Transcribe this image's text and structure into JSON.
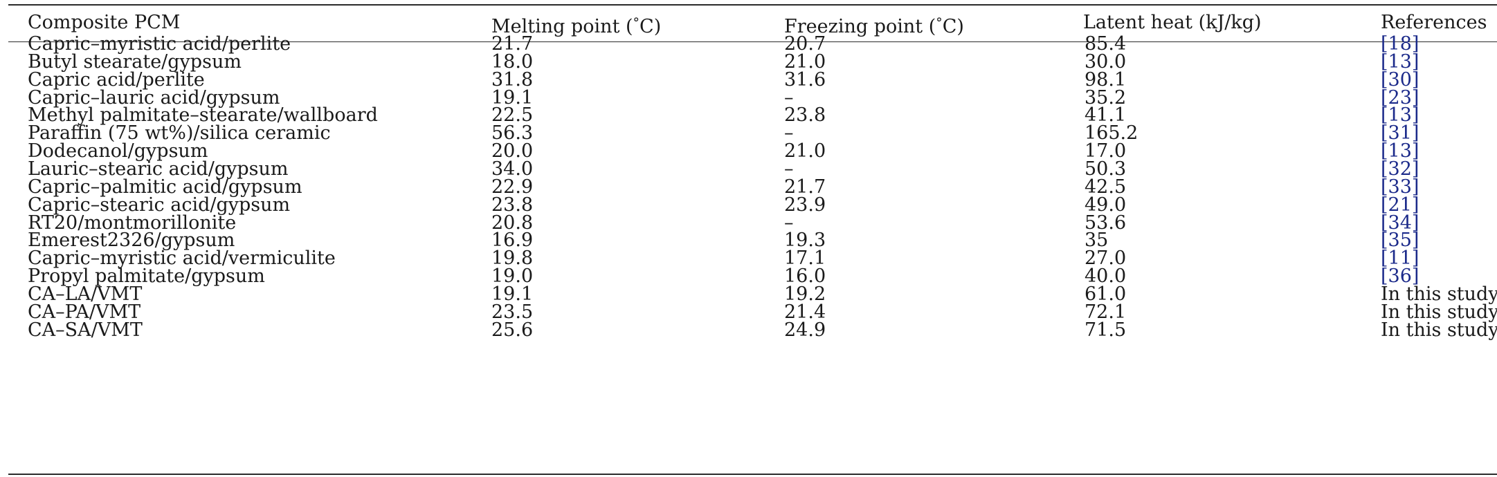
{
  "table": {
    "headers": {
      "composite": "Composite PCM",
      "melting_pre": "Melting point (",
      "freezing_pre": "Freezing point (",
      "deg": "°",
      "unit_c": "C)",
      "latent": "Latent heat (kJ/kg)",
      "references": "References"
    },
    "rows": [
      {
        "composite": "Capric–myristic acid/perlite",
        "melting": "21.7",
        "freezing": "20.7",
        "latent": "85.4",
        "ref": "[18]",
        "ref_is_link": true
      },
      {
        "composite": "Butyl stearate/gypsum",
        "melting": "18.0",
        "freezing": "21.0",
        "latent": "30.0",
        "ref": "[13]",
        "ref_is_link": true
      },
      {
        "composite": "Capric acid/perlite",
        "melting": "31.8",
        "freezing": "31.6",
        "latent": "98.1",
        "ref": "[30]",
        "ref_is_link": true
      },
      {
        "composite": "Capric–lauric acid/gypsum",
        "melting": "19.1",
        "freezing": "–",
        "latent": "35.2",
        "ref": "[23]",
        "ref_is_link": true
      },
      {
        "composite": "Methyl palmitate–stearate/wallboard",
        "melting": "22.5",
        "freezing": "23.8",
        "latent": "41.1",
        "ref": "[13]",
        "ref_is_link": true
      },
      {
        "composite": "Paraffin (75 wt%)/silica ceramic",
        "melting": "56.3",
        "freezing": "–",
        "latent": "165.2",
        "ref": "[31]",
        "ref_is_link": true
      },
      {
        "composite": "Dodecanol/gypsum",
        "melting": "20.0",
        "freezing": "21.0",
        "latent": "17.0",
        "ref": "[13]",
        "ref_is_link": true
      },
      {
        "composite": "Lauric–stearic acid/gypsum",
        "melting": "34.0",
        "freezing": "–",
        "latent": "50.3",
        "ref": "[32]",
        "ref_is_link": true
      },
      {
        "composite": "Capric–palmitic acid/gypsum",
        "melting": "22.9",
        "freezing": "21.7",
        "latent": "42.5",
        "ref": "[33]",
        "ref_is_link": true
      },
      {
        "composite": "Capric–stearic acid/gypsum",
        "melting": "23.8",
        "freezing": "23.9",
        "latent": "49.0",
        "ref": "[21]",
        "ref_is_link": true
      },
      {
        "composite": "RT20/montmorillonite",
        "melting": "20.8",
        "freezing": "–",
        "latent": "53.6",
        "ref": "[34]",
        "ref_is_link": true
      },
      {
        "composite": "Emerest2326/gypsum",
        "melting": "16.9",
        "freezing": "19.3",
        "latent": "35",
        "ref": "[35]",
        "ref_is_link": true
      },
      {
        "composite": "Capric–myristic acid/vermiculite",
        "melting": "19.8",
        "freezing": "17.1",
        "latent": "27.0",
        "ref": "[11]",
        "ref_is_link": true
      },
      {
        "composite": "Propyl palmitate/gypsum",
        "melting": "19.0",
        "freezing": "16.0",
        "latent": "40.0",
        "ref": "[36]",
        "ref_is_link": true
      },
      {
        "composite": "CA–LA/VMT",
        "melting": "19.1",
        "freezing": "19.2",
        "latent": "61.0",
        "ref": "In this study",
        "ref_is_link": false
      },
      {
        "composite": "CA–PA/VMT",
        "melting": "23.5",
        "freezing": "21.4",
        "latent": "72.1",
        "ref": "In this study",
        "ref_is_link": false
      },
      {
        "composite": "CA–SA/VMT",
        "melting": "25.6",
        "freezing": "24.9",
        "latent": "71.5",
        "ref": "In this study",
        "ref_is_link": false
      }
    ]
  }
}
